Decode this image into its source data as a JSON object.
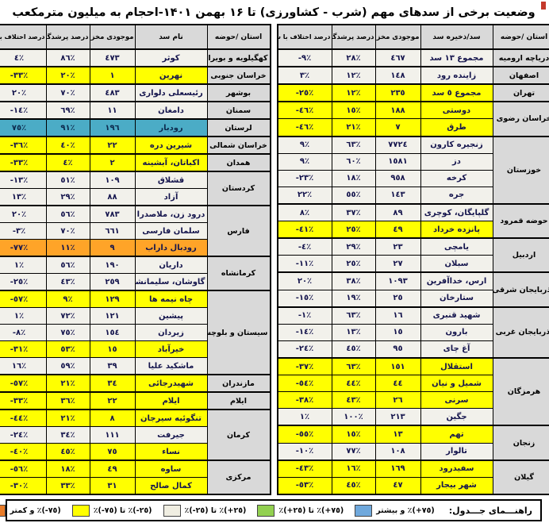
{
  "chart_data": {
    "type": "table",
    "title": "وضعیت برخی از سدهای مهم (شرب - کشاورزی) تا ۱۶ بهمن ۱۴۰۱-احجام به میلیون مترمکعب",
    "colors": {
      "none": "#F2F1EB",
      "yellow": "#FFFF00",
      "orange": "#FFA428",
      "teal": "#4BACC6",
      "header_bg": "#D9D9D9",
      "legend_blue": "#6FA8DC",
      "legend_green": "#92D050",
      "legend_white": "#F0EEE2",
      "legend_orange": "#E87B28"
    },
    "legend": {
      "heading": "راهنـــمای جـــدول:",
      "items": [
        {
          "name": "blue",
          "color": "#6FA8DC",
          "label": "‭(+٧٥)‬٪ و بیشتر"
        },
        {
          "name": "green",
          "color": "#92D050",
          "label": "‭(+٧٥)‬٪ تا ‭(+٢٥)‬٪"
        },
        {
          "name": "white",
          "color": "#F0EEE2",
          "label": "‭(+٢٥)‬٪ تا ‭(-٢٥)‬٪"
        },
        {
          "name": "yellow",
          "color": "#FFFF00",
          "label": "‭(-٢٥)‬٪ تا ‭(-٧٥)‬٪"
        },
        {
          "name": "orange",
          "color": "#E87B28",
          "label": "‭(-٧٥)‬٪ و کمتر"
        }
      ]
    },
    "tables": [
      {
        "id": "right",
        "columns": [
          "استان /حوضه",
          "سد/ذخیره سد",
          "موجودی مخزن",
          "درصد پرشدگی",
          "درصد اختلاف با سال قبل"
        ],
        "groups": [
          {
            "province": "دریاچه ارومیه",
            "rows": [
              {
                "dam": "مجموع ١٣ سد",
                "stock": "٤٦٧",
                "fill": "٢٨٪",
                "diff": "-٩٪",
                "hl": "none"
              }
            ]
          },
          {
            "province": "اصفهان",
            "rows": [
              {
                "dam": "زاینده رود",
                "stock": "١٤٨",
                "fill": "١٢٪",
                "diff": "٣٪",
                "hl": "none"
              }
            ]
          },
          {
            "province": "تهران",
            "rows": [
              {
                "dam": "مجموع ٥ سد",
                "stock": "٢٣٥",
                "fill": "١٢٪",
                "diff": "-٢٥٪",
                "hl": "yellow"
              }
            ]
          },
          {
            "province": "خراسان رضوی",
            "rows": [
              {
                "dam": "دوستی",
                "stock": "١٨٨",
                "fill": "١٥٪",
                "diff": "-٤٦٪",
                "hl": "yellow"
              },
              {
                "dam": "طرق",
                "stock": "٧",
                "fill": "٢١٪",
                "diff": "-٤٦٪",
                "hl": "yellow"
              }
            ]
          },
          {
            "province": "خوزستان",
            "rows": [
              {
                "dam": "زنجیره کارون",
                "stock": "٧٧٢٤",
                "fill": "٦٣٪",
                "diff": "٩٪",
                "hl": "none"
              },
              {
                "dam": "دز",
                "stock": "١٥٨١",
                "fill": "٦٠٪",
                "diff": "٩٪",
                "hl": "none"
              },
              {
                "dam": "کرخه",
                "stock": "٩٥٨",
                "fill": "١٨٪",
                "diff": "-٢٣٪",
                "hl": "none"
              },
              {
                "dam": "جره",
                "stock": "١٤٣",
                "fill": "٥٥٪",
                "diff": "٢٢٪",
                "hl": "none"
              }
            ]
          },
          {
            "province": "حوضه قمرود",
            "rows": [
              {
                "dam": "گلپایگان، کوچری",
                "stock": "٨٩",
                "fill": "٣٧٪",
                "diff": "٨٪",
                "hl": "none"
              },
              {
                "dam": "پانزده خرداد",
                "stock": "٤٩",
                "fill": "٢٥٪",
                "diff": "-٤١٪",
                "hl": "yellow"
              }
            ]
          },
          {
            "province": "اردبیل",
            "rows": [
              {
                "dam": "یامچی",
                "stock": "٢٣",
                "fill": "٢٩٪",
                "diff": "-٤٪",
                "hl": "none"
              },
              {
                "dam": "سبلان",
                "stock": "٢٧",
                "fill": "٢٥٪",
                "diff": "-١١٪",
                "hl": "none"
              }
            ]
          },
          {
            "province": "آذربایجان شرقی",
            "rows": [
              {
                "dam": "ارس، خداآفرین",
                "stock": "١٠٩٣",
                "fill": "٣٨٪",
                "diff": "٢٠٪",
                "hl": "none"
              },
              {
                "dam": "ستارخان",
                "stock": "٢٥",
                "fill": "١٩٪",
                "diff": "-١٥٪",
                "hl": "none"
              }
            ]
          },
          {
            "province": "آذربایجان غربی",
            "rows": [
              {
                "dam": "شهید قنبری",
                "stock": "١٦",
                "fill": "٦٣٪",
                "diff": "-١٪",
                "hl": "none"
              },
              {
                "dam": "بارون",
                "stock": "١٥",
                "fill": "١٣٪",
                "diff": "-١٤٪",
                "hl": "none"
              },
              {
                "dam": "آغ چای",
                "stock": "٩٥",
                "fill": "٤٥٪",
                "diff": "-٢٤٪",
                "hl": "none"
              }
            ]
          },
          {
            "province": "هرمزگان",
            "rows": [
              {
                "dam": "استقلال",
                "stock": "١٥١",
                "fill": "٦٣٪",
                "diff": "-٣٧٪",
                "hl": "yellow"
              },
              {
                "dam": "شمیل و نیان",
                "stock": "٤٤",
                "fill": "٤٤٪",
                "diff": "-٥٤٪",
                "hl": "yellow"
              },
              {
                "dam": "سرنی",
                "stock": "٢٦",
                "fill": "٤٣٪",
                "diff": "-٣٨٪",
                "hl": "yellow"
              },
              {
                "dam": "جگین",
                "stock": "٢١٣",
                "fill": "١٠٠٪",
                "diff": "١٪",
                "hl": "none"
              }
            ]
          },
          {
            "province": "زنجان",
            "rows": [
              {
                "dam": "تهم",
                "stock": "١٣",
                "fill": "١٥٪",
                "diff": "-٥٥٪",
                "hl": "yellow"
              },
              {
                "dam": "تالوار",
                "stock": "١٠٨",
                "fill": "٧٧٪",
                "diff": "-١٠٪",
                "hl": "none"
              }
            ]
          },
          {
            "province": "گیلان",
            "rows": [
              {
                "dam": "سفیدرود",
                "stock": "١٦٩",
                "fill": "١٦٪",
                "diff": "-٤٣٪",
                "hl": "yellow"
              },
              {
                "dam": "شهر بیجار",
                "stock": "٤٧",
                "fill": "٤٥٪",
                "diff": "-٥٣٪",
                "hl": "yellow"
              }
            ]
          }
        ]
      },
      {
        "id": "left",
        "columns": [
          "استان /حوضه",
          "نام سد",
          "موجودی مخزن",
          "درصد پرشدگی",
          "درصد اختلاف با سال قبل"
        ],
        "groups": [
          {
            "province": "کهگیلویه و بویراحمد",
            "rows": [
              {
                "dam": "کوثر",
                "stock": "٤٧٣",
                "fill": "٨٦٪",
                "diff": "٤٪",
                "hl": "none"
              }
            ]
          },
          {
            "province": "خراسان جنوبی",
            "rows": [
              {
                "dam": "نهرین",
                "stock": "١",
                "fill": "٢٠٪",
                "diff": "-٣٣٪",
                "hl": "yellow"
              }
            ]
          },
          {
            "province": "بوشهر",
            "rows": [
              {
                "dam": "رئیسعلی دلواری",
                "stock": "٤٨٣",
                "fill": "٧٠٪",
                "diff": "٢٠٪",
                "hl": "none"
              }
            ]
          },
          {
            "province": "سمنان",
            "rows": [
              {
                "dam": "دامغان",
                "stock": "١١",
                "fill": "٦٩٪",
                "diff": "-١٤٪",
                "hl": "none"
              }
            ]
          },
          {
            "province": "لرستان",
            "rows": [
              {
                "dam": "رودبار",
                "stock": "١٩٦",
                "fill": "٩١٪",
                "diff": "٧٥٪",
                "hl": "teal"
              }
            ]
          },
          {
            "province": "خراسان شمالی",
            "rows": [
              {
                "dam": "شیرین دره",
                "stock": "٢٢",
                "fill": "٤٠٪",
                "diff": "-٣٦٪",
                "hl": "yellow"
              }
            ]
          },
          {
            "province": "همدان",
            "rows": [
              {
                "dam": "اکباتان، آبشینه",
                "stock": "٢",
                "fill": "٤٪",
                "diff": "-٣٣٪",
                "hl": "yellow"
              }
            ]
          },
          {
            "province": "کردستان",
            "rows": [
              {
                "dam": "قشلاق",
                "stock": "١٠٩",
                "fill": "٥١٪",
                "diff": "-١٣٪",
                "hl": "none"
              },
              {
                "dam": "آزاد",
                "stock": "٨٨",
                "fill": "٢٩٪",
                "diff": "١٣٪",
                "hl": "none"
              }
            ]
          },
          {
            "province": "فارس",
            "rows": [
              {
                "dam": "درود زن، ملاصدرا",
                "stock": "٧٨٣",
                "fill": "٥٦٪",
                "diff": "٢٠٪",
                "hl": "none"
              },
              {
                "dam": "سلمان فارسی",
                "stock": "٦٦١",
                "fill": "٧٠٪",
                "diff": "-٣٪",
                "hl": "none"
              },
              {
                "dam": "رودبال داراب",
                "stock": "٩",
                "fill": "١١٪",
                "diff": "-٧٧٪",
                "hl": "orange"
              }
            ]
          },
          {
            "province": "کرمانشاه",
            "rows": [
              {
                "dam": "داریان",
                "stock": "١٩٠",
                "fill": "٥٦٪",
                "diff": "١٪",
                "hl": "none"
              },
              {
                "dam": "گاوشان، سلیمانشاه",
                "stock": "٢٥٩",
                "fill": "٤٣٪",
                "diff": "-٢٥٪",
                "hl": "none"
              }
            ]
          },
          {
            "province": "سیستان و بلوچستان",
            "rows": [
              {
                "dam": "چاه نیمه ها",
                "stock": "١٢٩",
                "fill": "٩٪",
                "diff": "-٥٧٪",
                "hl": "yellow"
              },
              {
                "dam": "پیشین",
                "stock": "١٢١",
                "fill": "٧٢٪",
                "diff": "١٪",
                "hl": "none"
              },
              {
                "dam": "زیردان",
                "stock": "١٥٤",
                "fill": "٧٥٪",
                "diff": "-٨٪",
                "hl": "none"
              },
              {
                "dam": "خیرآباد",
                "stock": "١٥",
                "fill": "٥٣٪",
                "diff": "-٣١٪",
                "hl": "yellow"
              },
              {
                "dam": "ماشکید علیا",
                "stock": "٣٩",
                "fill": "٥٩٪",
                "diff": "١٦٪",
                "hl": "none"
              }
            ]
          },
          {
            "province": "مازندران",
            "rows": [
              {
                "dam": "شهیدرجائی",
                "stock": "٣٤",
                "fill": "٢١٪",
                "diff": "-٥٧٪",
                "hl": "yellow"
              }
            ]
          },
          {
            "province": "ایلام",
            "rows": [
              {
                "dam": "ایلام",
                "stock": "٢٢",
                "fill": "٣٦٪",
                "diff": "-٣٣٪",
                "hl": "yellow"
              }
            ]
          },
          {
            "province": "کرمان",
            "rows": [
              {
                "dam": "تنگوئیه سیرجان",
                "stock": "٨",
                "fill": "٢١٪",
                "diff": "-٤٤٪",
                "hl": "yellow"
              },
              {
                "dam": "جیرفت",
                "stock": "١١١",
                "fill": "٣٤٪",
                "diff": "-٢٤٪",
                "hl": "none"
              },
              {
                "dam": "نساء",
                "stock": "٧٥",
                "fill": "٤٥٪",
                "diff": "-٤٠٪",
                "hl": "yellow"
              }
            ]
          },
          {
            "province": "مرکزی",
            "rows": [
              {
                "dam": "ساوه",
                "stock": "٤٩",
                "fill": "١٨٪",
                "diff": "-٥٦٪",
                "hl": "yellow"
              },
              {
                "dam": "کمال صالح",
                "stock": "٣١",
                "fill": "٣٣٪",
                "diff": "-٣٠٪",
                "hl": "yellow"
              }
            ]
          }
        ]
      }
    ]
  }
}
